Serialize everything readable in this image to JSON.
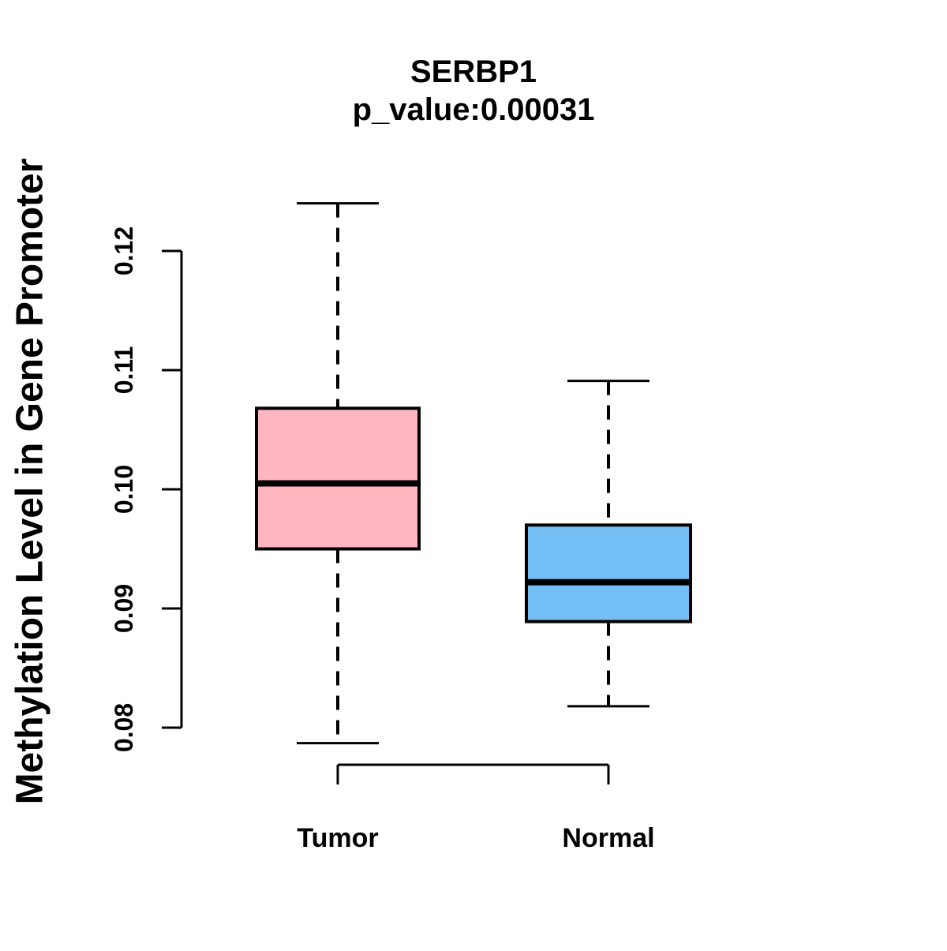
{
  "chart_data": {
    "type": "boxplot",
    "title": "SERBP1",
    "subtitle": "p_value:0.00031",
    "gene": "SERBP1",
    "p_value": "0.00031",
    "ylabel": "Methylation Level in Gene Promoter",
    "xlabel": "",
    "categories": [
      "Tumor",
      "Normal"
    ],
    "ylim": [
      0.08,
      0.12
    ],
    "yticks": [
      0.12,
      0.11,
      0.1,
      0.09,
      0.08
    ],
    "ytick_labels": [
      "0.12",
      "0.11",
      "0.10",
      "0.09",
      "0.08"
    ],
    "grid": "off",
    "legend": "none",
    "series": [
      {
        "name": "Tumor",
        "fill_color": "#FFB6C1",
        "whisker_low": 0.0787,
        "q1": 0.095,
        "median": 0.1005,
        "q3": 0.1068,
        "whisker_high": 0.124,
        "outliers": []
      },
      {
        "name": "Normal",
        "fill_color": "#73BEF5",
        "whisker_low": 0.0818,
        "q1": 0.0889,
        "median": 0.0922,
        "q3": 0.097,
        "whisker_high": 0.1091,
        "outliers": []
      }
    ]
  },
  "colors": {
    "background": "#FFFFFF",
    "stroke": "#000000",
    "tumor_fill": "#FFB6C1",
    "normal_fill": "#73BEF5"
  }
}
